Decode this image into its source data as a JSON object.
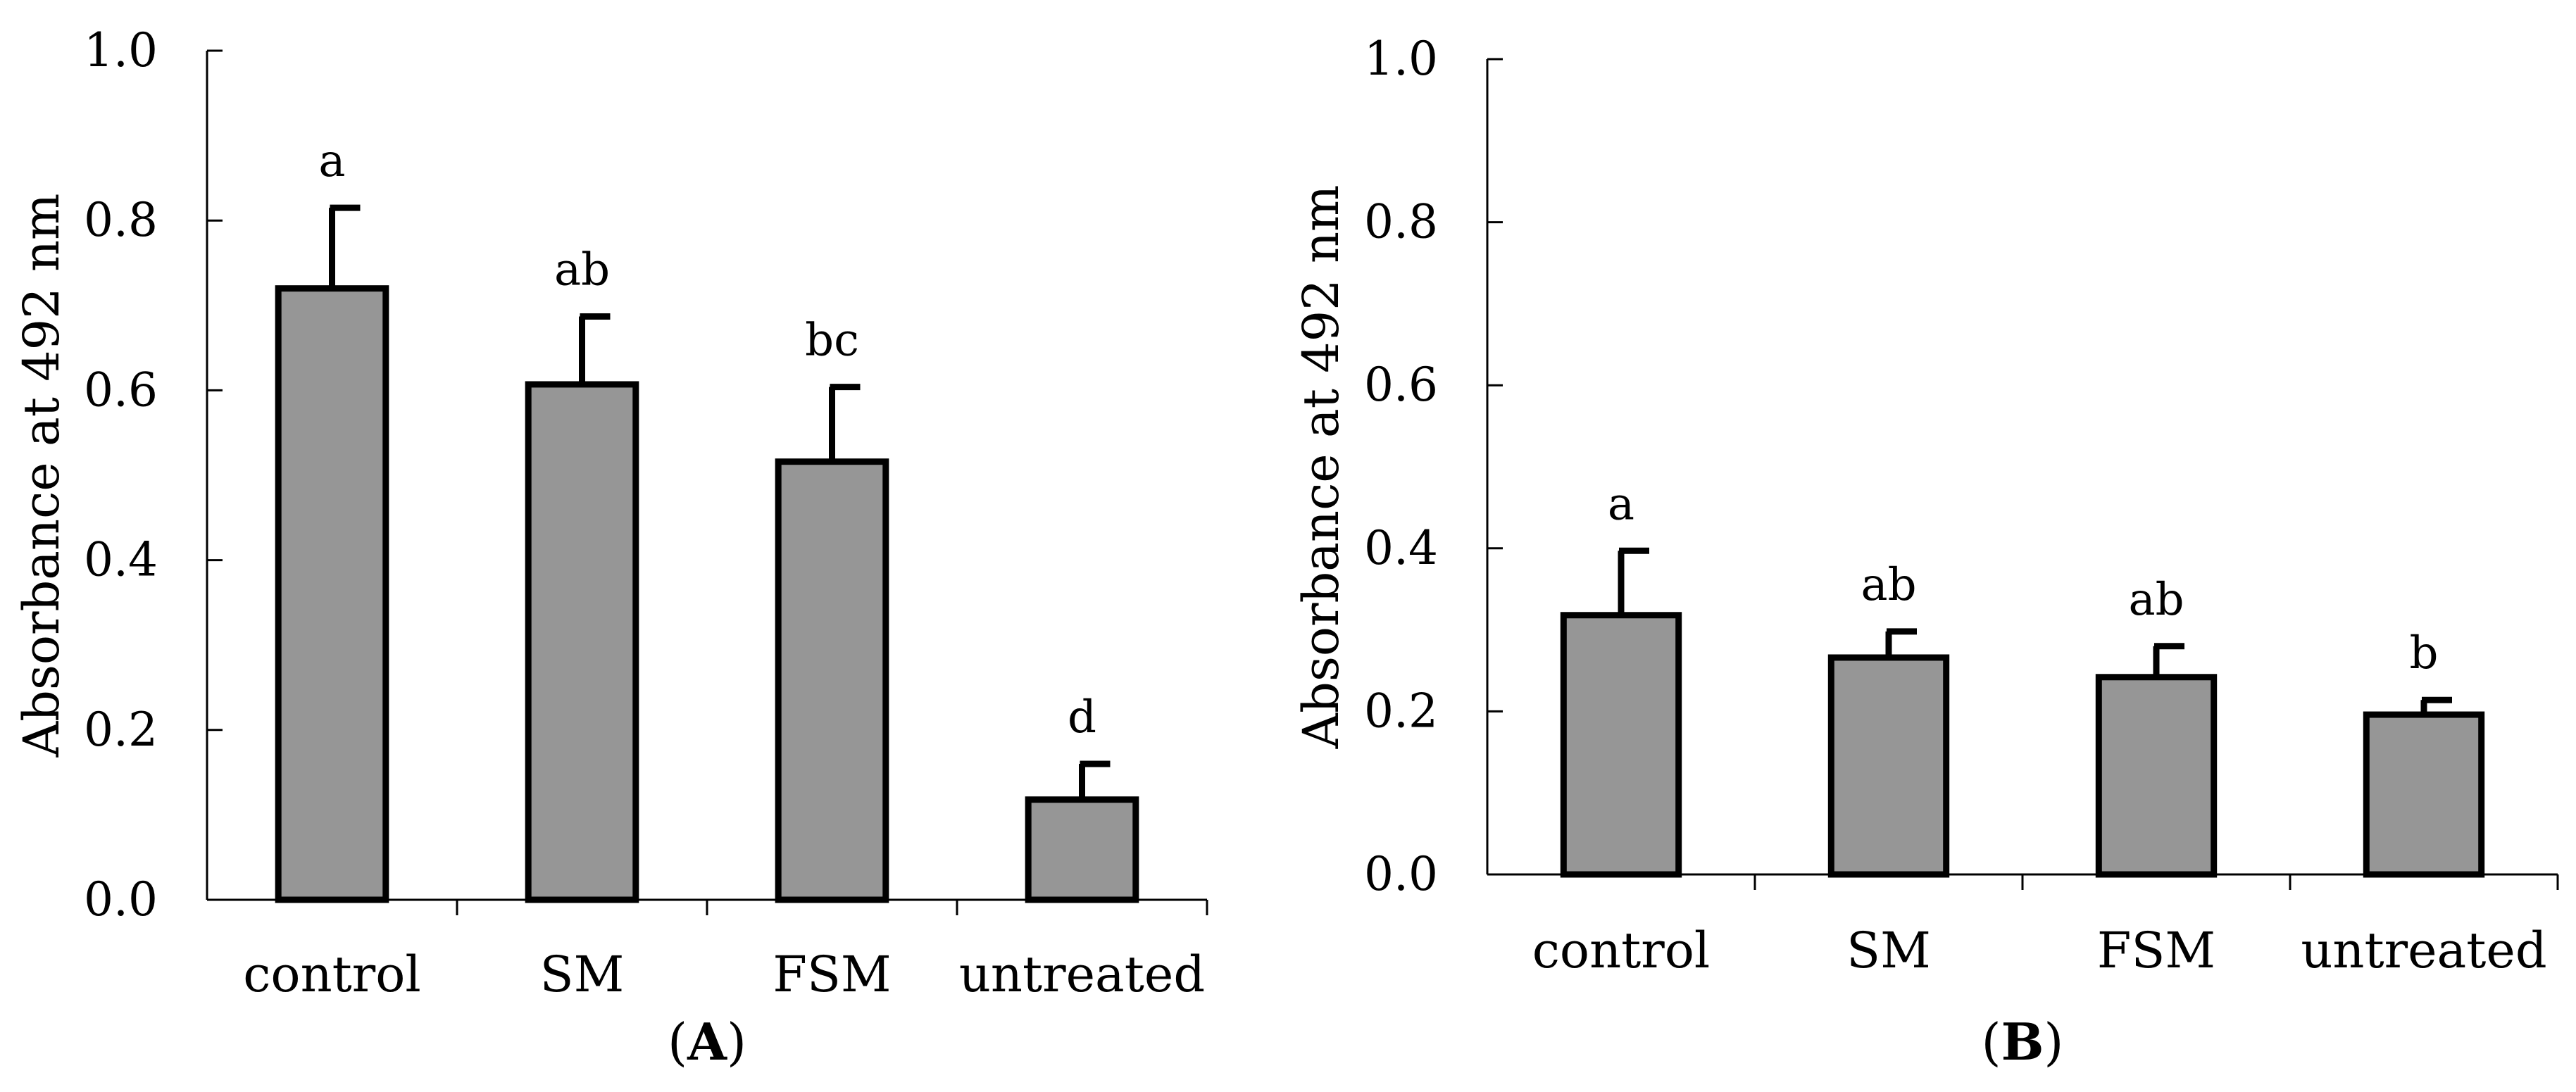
{
  "chart_data": [
    {
      "type": "bar",
      "panel": "A",
      "panel_label": "A",
      "ylabel": "Absorbance at 492 nm",
      "xlabel": "",
      "ylim": [
        0,
        1.0
      ],
      "yticks": [
        "0.0",
        "0.2",
        "0.4",
        "0.6",
        "0.8",
        "1.0"
      ],
      "ytick_values": [
        0,
        0.2,
        0.4,
        0.6,
        0.8,
        1.0
      ],
      "categories": [
        "control",
        "SM",
        "FSM",
        "untreated"
      ],
      "values": [
        0.72,
        0.607,
        0.516,
        0.118
      ],
      "errors": [
        0.095,
        0.08,
        0.088,
        0.042
      ],
      "significance": [
        "a",
        "ab",
        "bc",
        "d"
      ]
    },
    {
      "type": "bar",
      "panel": "B",
      "panel_label": "B",
      "ylabel": "Absorbance at 492 nm",
      "xlabel": "",
      "ylim": [
        0,
        1.0
      ],
      "yticks": [
        "0.0",
        "0.2",
        "0.4",
        "0.6",
        "0.8",
        "1.0"
      ],
      "ytick_values": [
        0,
        0.2,
        0.4,
        0.6,
        0.8,
        1.0
      ],
      "categories": [
        "control",
        "SM",
        "FSM",
        "untreated"
      ],
      "values": [
        0.318,
        0.266,
        0.242,
        0.196
      ],
      "errors": [
        0.079,
        0.032,
        0.038,
        0.018
      ],
      "significance": [
        "a",
        "ab",
        "ab",
        "b"
      ]
    }
  ]
}
